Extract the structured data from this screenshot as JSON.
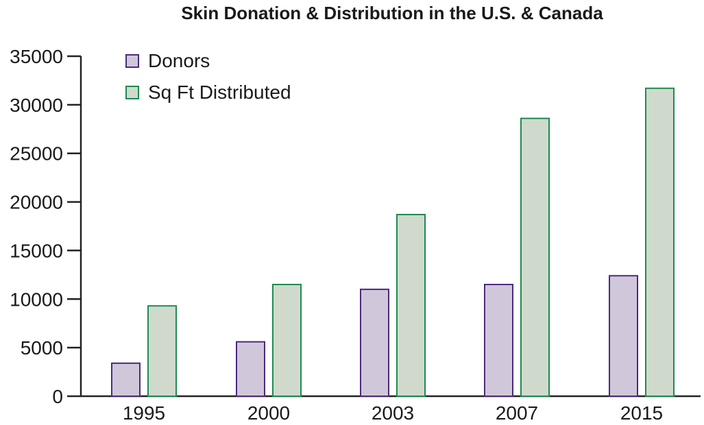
{
  "chart_data": {
    "type": "bar",
    "title": "Skin Donation & Distribution in the U.S. & Canada",
    "xlabel": "",
    "ylabel": "",
    "categories": [
      "1995",
      "2000",
      "2003",
      "2007",
      "2015"
    ],
    "series": [
      {
        "name": "Donors",
        "values": [
          3400,
          5600,
          11000,
          11500,
          12400
        ],
        "fill": "#d1c7db",
        "stroke": "#4b2a7a"
      },
      {
        "name": "Sq Ft Distributed",
        "values": [
          9300,
          11500,
          18700,
          28600,
          31700
        ],
        "fill": "#cfdacd",
        "stroke": "#1e8a50"
      }
    ],
    "ylim": [
      0,
      35000
    ],
    "yticks": [
      "0",
      "5000",
      "10000",
      "15000",
      "20000",
      "25000",
      "30000",
      "35000"
    ],
    "grid": false,
    "legend_position": "top-left"
  }
}
